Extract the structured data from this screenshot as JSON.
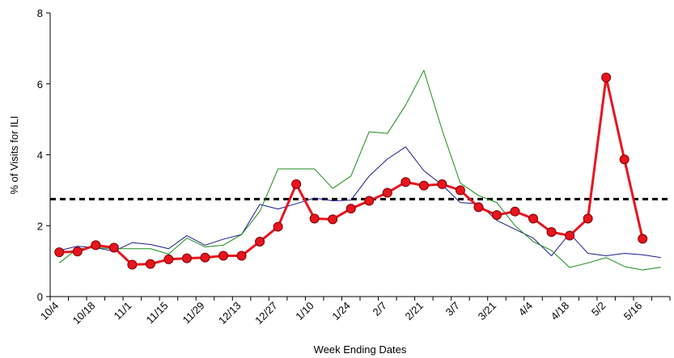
{
  "chart_data": {
    "type": "line",
    "x_label": "Week Ending Dates",
    "y_label": "% of Visits for ILI",
    "categories": [
      "10/4",
      null,
      "10/18",
      null,
      "11/1",
      null,
      "11/15",
      null,
      "11/29",
      null,
      "12/13",
      null,
      "12/27",
      null,
      "1/10",
      null,
      "1/24",
      null,
      "2/7",
      null,
      "2/21",
      null,
      "3/7",
      null,
      "3/21",
      null,
      "4/4",
      null,
      "4/18",
      null,
      "5/2",
      null,
      "5/16",
      null
    ],
    "ylim": [
      0,
      8
    ],
    "yticks": [
      0,
      2,
      4,
      6,
      8
    ],
    "baseline": 2.75,
    "baseline_color": "#000000",
    "series": [
      {
        "color": "#1a1a8c",
        "line_width": 1,
        "marker": "none",
        "values": [
          1.3,
          1.42,
          1.38,
          1.28,
          1.52,
          1.47,
          1.35,
          1.72,
          1.45,
          1.62,
          1.75,
          2.6,
          2.47,
          2.62,
          2.78,
          2.7,
          2.72,
          3.4,
          3.88,
          4.22,
          3.55,
          3.15,
          2.65,
          2.62,
          2.15,
          1.9,
          1.65,
          1.15,
          1.78,
          1.22,
          1.15,
          1.22,
          1.18,
          1.1
        ]
      },
      {
        "color": "#1a8c1a",
        "line_width": 1,
        "marker": "none",
        "values": [
          0.95,
          1.35,
          1.38,
          1.35,
          1.35,
          1.35,
          1.2,
          1.65,
          1.4,
          1.45,
          1.75,
          2.4,
          3.6,
          3.6,
          3.6,
          3.05,
          3.4,
          4.65,
          4.6,
          5.4,
          6.38,
          4.7,
          3.2,
          2.85,
          2.65,
          2.0,
          1.55,
          1.3,
          0.82,
          0.95,
          1.1,
          0.85,
          0.75,
          0.83
        ]
      },
      {
        "color": "#e8141e",
        "line_width": 3,
        "marker": "circle",
        "values": [
          1.25,
          1.27,
          1.45,
          1.38,
          0.9,
          0.92,
          1.05,
          1.08,
          1.1,
          1.15,
          1.15,
          1.55,
          1.97,
          3.17,
          2.2,
          2.18,
          2.48,
          2.7,
          2.93,
          3.23,
          3.13,
          3.17,
          3.0,
          2.52,
          2.3,
          2.4,
          2.2,
          1.82,
          1.72,
          2.2,
          6.18,
          3.87,
          1.63,
          null
        ]
      }
    ]
  }
}
